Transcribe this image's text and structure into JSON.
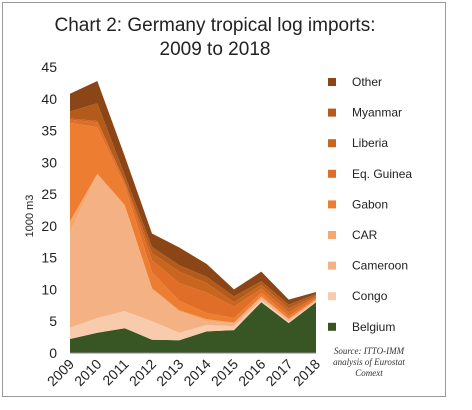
{
  "chart_data": {
    "type": "area",
    "title_line1": "Chart 2: Germany tropical log imports:",
    "title_line2": "2009 to 2018",
    "ylabel": "1000 m3",
    "ylim": [
      0,
      45
    ],
    "yticks": [
      "0",
      "5",
      "10",
      "15",
      "20",
      "25",
      "30",
      "35",
      "40",
      "45"
    ],
    "categories": [
      "2009",
      "2010",
      "2011",
      "2012",
      "2013",
      "2014",
      "2015",
      "2016",
      "2017",
      "2018"
    ],
    "stacked": true,
    "legend_position": "right",
    "series": [
      {
        "name": "Belgium",
        "color": "#375623",
        "values": [
          2.2,
          3.2,
          3.9,
          2.1,
          2.0,
          3.4,
          3.6,
          8.0,
          4.7,
          8.0
        ]
      },
      {
        "name": "Congo",
        "color": "#f8cbad",
        "values": [
          1.8,
          2.3,
          2.7,
          2.9,
          1.2,
          1.0,
          0.6,
          0.4,
          0.3,
          0.1
        ]
      },
      {
        "name": "Cameroon",
        "color": "#f4b183",
        "values": [
          15.0,
          22.5,
          16.5,
          5.0,
          3.3,
          0.6,
          0.4,
          0.3,
          0.2,
          0.2
        ]
      },
      {
        "name": "CAR",
        "color": "#f4a76f",
        "values": [
          1.7,
          0.2,
          0.2,
          0.2,
          0.2,
          0.3,
          0.2,
          0.2,
          0.2,
          0.1
        ]
      },
      {
        "name": "Gabon",
        "color": "#ed7d31",
        "values": [
          15.5,
          7.3,
          3.0,
          2.5,
          1.5,
          1.0,
          0.7,
          0.6,
          0.4,
          0.2
        ]
      },
      {
        "name": "Eq. Guinea",
        "color": "#e06d28",
        "values": [
          0.5,
          0.8,
          0.5,
          1.9,
          2.8,
          3.2,
          1.8,
          0.6,
          0.6,
          0.2
        ]
      },
      {
        "name": "Liberia",
        "color": "#c8651e",
        "values": [
          0.2,
          0.2,
          0.2,
          1.1,
          1.8,
          1.5,
          0.7,
          0.6,
          0.6,
          0.2
        ]
      },
      {
        "name": "Myanmar",
        "color": "#b45a1a",
        "values": [
          1.1,
          2.8,
          1.0,
          1.0,
          1.0,
          1.0,
          0.9,
          0.6,
          0.6,
          0.3
        ]
      },
      {
        "name": "Other",
        "color": "#8c4516",
        "values": [
          2.8,
          3.5,
          3.0,
          2.1,
          2.8,
          2.0,
          1.1,
          1.5,
          0.8,
          0.3
        ]
      }
    ],
    "source": [
      "Source: ITTO-IMM",
      "analysis of Eurostat",
      "Comext"
    ]
  }
}
